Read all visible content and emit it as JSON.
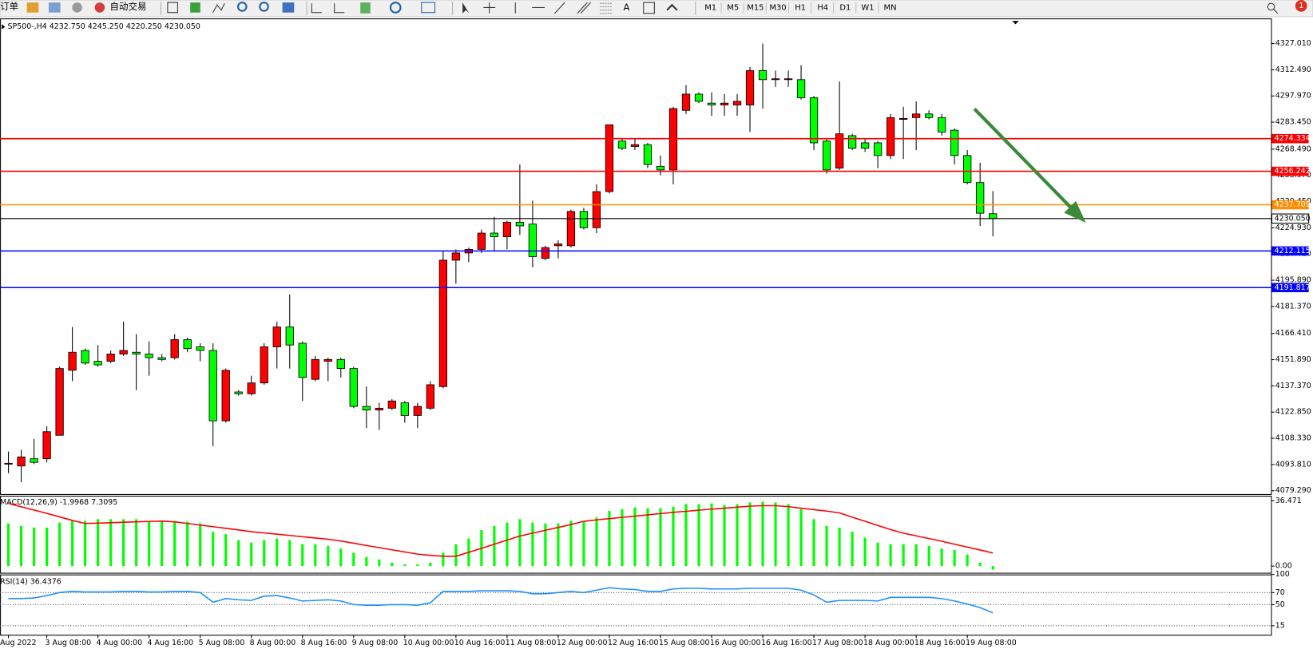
{
  "toolbar": {
    "order": "订单",
    "auto_trading": "自动交易",
    "text_tool": "A",
    "timeframes": [
      "M1",
      "M5",
      "M15",
      "M30",
      "H1",
      "H4",
      "D1",
      "W1",
      "MN"
    ],
    "notifications": "1"
  },
  "chart_data": [
    {
      "type": "candlestick",
      "title": "SP500-,H4  4232.750 4245.250 4220.250 4230.050",
      "up_color": "#ff0000",
      "down_color": "#00ff00",
      "categories": [
        "Aug 2022",
        null,
        null,
        "3 Aug 08:00",
        null,
        null,
        null,
        "4 Aug 00:00",
        null,
        null,
        null,
        "4 Aug 16:00",
        null,
        null,
        null,
        "5 Aug 08:00",
        null,
        null,
        null,
        "8 Aug 00:00",
        null,
        null,
        null,
        "8 Aug 16:00",
        null,
        null,
        null,
        "9 Aug 08:00",
        null,
        null,
        null,
        "10 Aug 00:00",
        null,
        null,
        null,
        "10 Aug 16:00",
        null,
        null,
        null,
        "11 Aug 08:00",
        null,
        null,
        null,
        "12 Aug 00:00",
        null,
        null,
        null,
        "12 Aug 16:00",
        null,
        null,
        null,
        "15 Aug 08:00",
        null,
        null,
        null,
        "16 Aug 00:00",
        null,
        null,
        null,
        "16 Aug 16:00",
        null,
        null,
        null,
        "17 Aug 08:00",
        null,
        null,
        null,
        "18 Aug 00:00",
        null,
        null,
        null,
        "18 Aug 16:00",
        null,
        null,
        null,
        "19 Aug 08:00",
        null,
        null
      ],
      "ohlc": [
        [
          4094,
          4101,
          4089,
          4094.5
        ],
        [
          4093,
          4102,
          4084,
          4098
        ],
        [
          4097,
          4108,
          4094,
          4095
        ],
        [
          4097,
          4115,
          4095,
          4112
        ],
        [
          4110,
          4148,
          4110,
          4147
        ],
        [
          4146,
          4170,
          4140,
          4156
        ],
        [
          4157,
          4158,
          4149,
          4150
        ],
        [
          4151,
          4160,
          4148,
          4149
        ],
        [
          4151,
          4157,
          4150,
          4155
        ],
        [
          4155,
          4173,
          4154,
          4157
        ],
        [
          4156,
          4166,
          4135,
          4155
        ],
        [
          4155,
          4162,
          4143,
          4153
        ],
        [
          4153,
          4155,
          4151,
          4152
        ],
        [
          4153,
          4166,
          4152,
          4163
        ],
        [
          4163,
          4164,
          4156,
          4158
        ],
        [
          4159,
          4161,
          4151,
          4157
        ],
        [
          4157,
          4161,
          4104,
          4118
        ],
        [
          4118,
          4147,
          4117,
          4146
        ],
        [
          4134,
          4135,
          4132,
          4133
        ],
        [
          4133,
          4143,
          4132,
          4139
        ],
        [
          4139,
          4161,
          4138,
          4159
        ],
        [
          4159,
          4173,
          4147,
          4170
        ],
        [
          4170,
          4188,
          4147,
          4160
        ],
        [
          4161,
          4162,
          4129,
          4142
        ],
        [
          4141,
          4154,
          4140,
          4152
        ],
        [
          4151,
          4153,
          4140,
          4152
        ],
        [
          4152,
          4153,
          4142,
          4147
        ],
        [
          4147,
          4148,
          4125,
          4126
        ],
        [
          4126,
          4137,
          4114,
          4124
        ],
        [
          4124,
          4128,
          4113,
          4125
        ],
        [
          4125,
          4130,
          4124,
          4129
        ],
        [
          4128,
          4129,
          4117,
          4121
        ],
        [
          4121,
          4128,
          4114,
          4126
        ],
        [
          4125,
          4140,
          4124,
          4138
        ],
        [
          4137,
          4212,
          4136,
          4207
        ],
        [
          4207,
          4213,
          4194,
          4211
        ],
        [
          4211,
          4214,
          4206,
          4213
        ],
        [
          4213,
          4224,
          4211,
          4222
        ],
        [
          4222,
          4231,
          4212,
          4220
        ],
        [
          4220,
          4229,
          4213,
          4228
        ],
        [
          4228,
          4260,
          4221,
          4226
        ],
        [
          4227,
          4240,
          4203,
          4209
        ],
        [
          4208,
          4215,
          4207,
          4214
        ],
        [
          4215,
          4218,
          4208,
          4216
        ],
        [
          4215,
          4235,
          4214,
          4234
        ],
        [
          4234,
          4236,
          4224,
          4225
        ],
        [
          4225,
          4249,
          4222,
          4245
        ],
        [
          4245,
          4282,
          4244,
          4282
        ],
        [
          4273,
          4274,
          4268,
          4269
        ],
        [
          4270,
          4274,
          4268,
          4271
        ],
        [
          4271,
          4272,
          4258,
          4260
        ],
        [
          4259,
          4265,
          4254,
          4257
        ],
        [
          4257,
          4292,
          4249,
          4291
        ],
        [
          4290,
          4304,
          4288,
          4299
        ],
        [
          4299,
          4300,
          4294,
          4295
        ],
        [
          4294,
          4300,
          4287,
          4293
        ],
        [
          4293,
          4299,
          4287,
          4294
        ],
        [
          4293,
          4299,
          4287,
          4295
        ],
        [
          4293,
          4314,
          4278,
          4312
        ],
        [
          4312,
          4327,
          4291,
          4307
        ],
        [
          4307,
          4312,
          4303,
          4307.5
        ],
        [
          4307,
          4312,
          4303,
          4307.5
        ],
        [
          4307,
          4315,
          4296,
          4297
        ],
        [
          4297,
          4298,
          4268,
          4272
        ],
        [
          4273,
          4274,
          4255,
          4257
        ],
        [
          4258,
          4306,
          4257,
          4277
        ],
        [
          4276,
          4277,
          4268,
          4269
        ],
        [
          4272,
          4274,
          4267,
          4269
        ],
        [
          4272,
          4273,
          4258,
          4265
        ],
        [
          4265,
          4288,
          4263,
          4286
        ],
        [
          4285,
          4292,
          4263,
          4285.5
        ],
        [
          4286,
          4295,
          4268,
          4288
        ],
        [
          4288,
          4290,
          4285,
          4286
        ],
        [
          4286,
          4288,
          4276,
          4278
        ],
        [
          4279,
          4280,
          4260,
          4265
        ],
        [
          4265,
          4268,
          4249,
          4250
        ],
        [
          4250,
          4261,
          4226,
          4233
        ],
        [
          4232.75,
          4245.25,
          4220.25,
          4230.05
        ]
      ],
      "ylim": [
        4077.43,
        4340.93
      ],
      "yticks": [
        {
          "value": 4327.01,
          "label": "4327.010"
        },
        {
          "value": 4312.49,
          "label": "4312.490"
        },
        {
          "value": 4297.97,
          "label": "4297.970"
        },
        {
          "value": 4283.45,
          "label": "4283.450"
        },
        {
          "value": 4268.49,
          "label": "4268.490"
        },
        {
          "value": 4253.97,
          "label": "4253.970"
        },
        {
          "value": 4239.45,
          "label": "4239.450"
        },
        {
          "value": 4224.93,
          "label": "4224.930"
        },
        {
          "value": 4210.41,
          "label": "4210.410"
        },
        {
          "value": 4195.89,
          "label": "4195.890"
        },
        {
          "value": 4181.37,
          "label": "4181.370"
        },
        {
          "value": 4166.41,
          "label": "4166.410"
        },
        {
          "value": 4151.89,
          "label": "4151.890"
        },
        {
          "value": 4137.37,
          "label": "4137.370"
        },
        {
          "value": 4122.85,
          "label": "4122.850"
        },
        {
          "value": 4108.33,
          "label": "4108.330"
        },
        {
          "value": 4093.81,
          "label": "4093.810"
        },
        {
          "value": 4079.29,
          "label": "4079.290"
        }
      ],
      "hlines": [
        {
          "value": 4274.334,
          "color": "#ff0000"
        },
        {
          "value": 4256.242,
          "color": "#ff0000"
        },
        {
          "value": 4237.709,
          "color": "#ff8c00"
        },
        {
          "value": {
            "value": 4230.05,
            "label": "4230.050"
          },
          "color": "#000000"
        },
        {
          "value": 4212.115,
          "color": "#0000ff"
        },
        {
          "value": 4191.817,
          "color": "#0000ff"
        }
      ]
    },
    {
      "type": "macd",
      "title": "MACD(12,26,9) -1.9968 7.3095",
      "histogram_color": "#00ff00",
      "signal_color": "#ff0000",
      "histogram_values": [
        23.8,
        22.4,
        21.5,
        21.5,
        24.3,
        25.2,
        25.2,
        26.2,
        26.2,
        26.2,
        26.2,
        25.2,
        24.8,
        25.2,
        24.8,
        23.8,
        19.2,
        17.8,
        14.5,
        13.1,
        14.5,
        15.4,
        14.5,
        12.2,
        12.2,
        11.2,
        9.8,
        7.5,
        5.1,
        3.7,
        1.9,
        0.9,
        0.9,
        1.9,
        7.5,
        12.2,
        15.4,
        20.1,
        22.4,
        24.3,
        26.2,
        24.3,
        23.8,
        23.8,
        25.2,
        25.2,
        27.1,
        30.8,
        31.8,
        32.7,
        32.3,
        32.3,
        33.2,
        34.6,
        34.6,
        35.0,
        34.1,
        34.6,
        35.5,
        36.0,
        35.5,
        34.6,
        31.8,
        26.2,
        22.4,
        21.5,
        19.2,
        15.9,
        13.1,
        12.2,
        12.2,
        12.2,
        11.2,
        9.8,
        8.9,
        6.5,
        1.9,
        -1.9968
      ],
      "signal_values": [
        35.0,
        33.1,
        31.3,
        29.4,
        27.5,
        25.5,
        23.8,
        24.0,
        24.2,
        24.5,
        24.7,
        24.9,
        25.1,
        24.7,
        23.8,
        22.9,
        22.0,
        21.1,
        20.2,
        19.2,
        18.5,
        17.8,
        17.1,
        16.4,
        15.7,
        15.0,
        14.0,
        12.8,
        11.5,
        10.3,
        9.1,
        7.9,
        6.7,
        6.0,
        5.5,
        5.5,
        7.7,
        9.9,
        12.2,
        14.5,
        16.8,
        18.4,
        20.0,
        21.6,
        23.2,
        25.0,
        25.8,
        26.5,
        27.2,
        27.9,
        28.6,
        29.3,
        30.0,
        30.6,
        31.2,
        31.8,
        32.3,
        32.9,
        33.5,
        33.7,
        33.7,
        33.2,
        32.3,
        31.5,
        30.7,
        29.7,
        27.3,
        25.0,
        22.7,
        20.4,
        18.4,
        16.9,
        15.4,
        13.9,
        12.2,
        10.6,
        9.0,
        7.3095
      ],
      "ylim": [
        -3.74,
        39.27
      ],
      "yticks": [
        36.471,
        {
          "value": 0,
          "label": "0.00"
        }
      ]
    },
    {
      "type": "line",
      "title": "RSI(14) 36.4376",
      "color": "#1e90ff",
      "values": [
        60,
        60,
        61,
        65,
        70,
        72,
        71,
        71,
        71,
        72,
        72,
        71,
        71,
        72,
        72,
        70,
        54,
        60,
        58,
        57,
        64,
        65,
        61,
        56,
        57,
        58,
        56,
        50,
        49,
        49,
        50,
        50,
        49,
        53,
        72,
        72,
        72,
        73,
        73,
        73,
        72,
        68,
        68,
        70,
        72,
        70,
        74,
        78,
        76,
        75,
        72,
        72,
        76,
        77,
        77,
        76,
        76,
        76,
        77,
        77,
        77,
        77,
        74,
        66,
        54,
        57,
        57,
        57,
        56,
        62,
        62,
        62,
        62,
        60,
        56,
        51,
        45,
        36.4376
      ],
      "ylim": [
        0,
        100
      ],
      "yticks": [
        100,
        70,
        50,
        15
      ]
    }
  ]
}
